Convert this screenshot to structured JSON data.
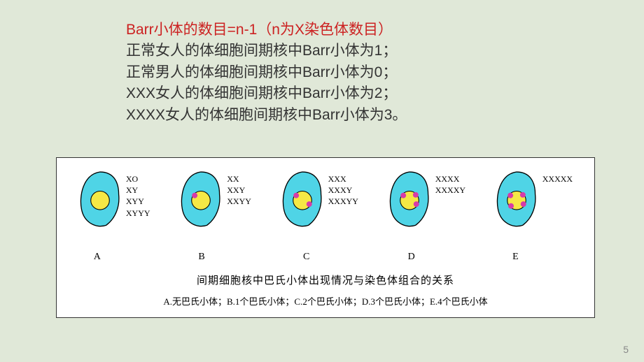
{
  "text": {
    "line1_prefix": "Barr小体的数目=n-1",
    "line1_note": "（n为X染色体数目）",
    "line2": "正常女人的体细胞间期核中Barr小体为1；",
    "line3": "正常男人的体细胞间期核中Barr小体为0；",
    "line4": "XXX女人的体细胞间期核中Barr小体为2；",
    "line5": "XXXX女人的体细胞间期核中Barr小体为3。"
  },
  "diagram": {
    "cell_fill": "#4fd4e6",
    "cell_stroke": "#000000",
    "nucleus_fill": "#f5e845",
    "nucleus_stroke": "#000000",
    "barr_fill": "#d63ca8",
    "background": "#ffffff",
    "cells": [
      {
        "label": "A",
        "barr_count": 0,
        "genotypes": [
          "XO",
          "XY",
          "XYY",
          "XYYY"
        ]
      },
      {
        "label": "B",
        "barr_count": 1,
        "genotypes": [
          "XX",
          "XXY",
          "XXYY"
        ]
      },
      {
        "label": "C",
        "barr_count": 2,
        "genotypes": [
          "XXX",
          "XXXY",
          "XXXYY"
        ]
      },
      {
        "label": "D",
        "barr_count": 3,
        "genotypes": [
          "XXXX",
          "XXXXY"
        ]
      },
      {
        "label": "E",
        "barr_count": 4,
        "genotypes": [
          "XXXXX"
        ]
      }
    ],
    "caption_title": "间期细胞核中巴氏小体出现情况与染色体组合的关系",
    "caption_legend": "A.无巴氏小体；B.1个巴氏小体；C.2个巴氏小体；D.3个巴氏小体；E.4个巴氏小体"
  },
  "page_number": "5"
}
